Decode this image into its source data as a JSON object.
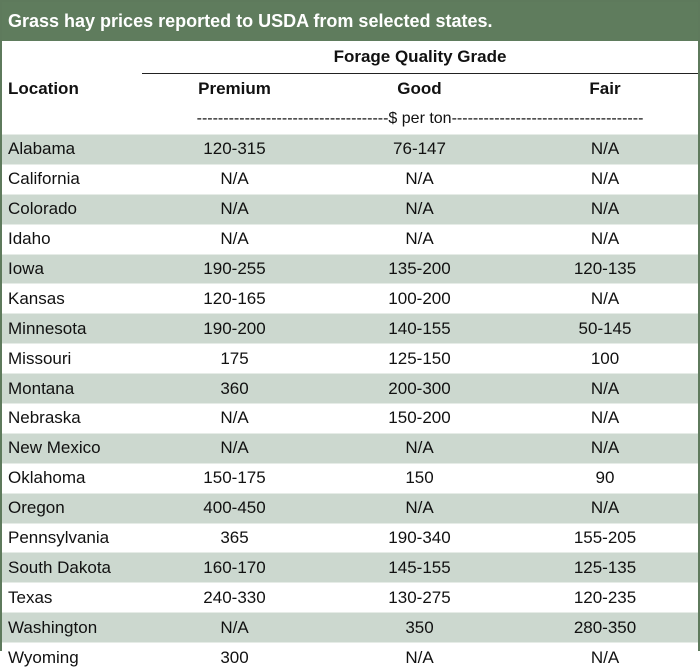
{
  "title": "Grass hay prices reported to USDA from selected states.",
  "header": {
    "group_label": "Forage Quality Grade",
    "location_label": "Location",
    "grades": [
      "Premium",
      "Good",
      "Fair"
    ],
    "unit_label": "------------------------------------$ per ton------------------------------------"
  },
  "rows": [
    {
      "location": "Alabama",
      "premium": "120-315",
      "good": "76-147",
      "fair": "N/A"
    },
    {
      "location": "California",
      "premium": "N/A",
      "good": "N/A",
      "fair": "N/A"
    },
    {
      "location": "Colorado",
      "premium": "N/A",
      "good": "N/A",
      "fair": "N/A"
    },
    {
      "location": "Idaho",
      "premium": "N/A",
      "good": "N/A",
      "fair": "N/A"
    },
    {
      "location": "Iowa",
      "premium": "190-255",
      "good": "135-200",
      "fair": "120-135"
    },
    {
      "location": "Kansas",
      "premium": "120-165",
      "good": "100-200",
      "fair": "N/A"
    },
    {
      "location": "Minnesota",
      "premium": "190-200",
      "good": "140-155",
      "fair": "50-145"
    },
    {
      "location": "Missouri",
      "premium": "175",
      "good": "125-150",
      "fair": "100"
    },
    {
      "location": "Montana",
      "premium": "360",
      "good": "200-300",
      "fair": "N/A"
    },
    {
      "location": "Nebraska",
      "premium": "N/A",
      "good": "150-200",
      "fair": "N/A"
    },
    {
      "location": "New Mexico",
      "premium": "N/A",
      "good": "N/A",
      "fair": "N/A"
    },
    {
      "location": "Oklahoma",
      "premium": "150-175",
      "good": "150",
      "fair": "90"
    },
    {
      "location": "Oregon",
      "premium": "400-450",
      "good": "N/A",
      "fair": "N/A"
    },
    {
      "location": "Pennsylvania",
      "premium": "365",
      "good": "190-340",
      "fair": "155-205"
    },
    {
      "location": "South Dakota",
      "premium": "160-170",
      "good": "145-155",
      "fair": "125-135"
    },
    {
      "location": "Texas",
      "premium": "240-330",
      "good": "130-275",
      "fair": "120-235"
    },
    {
      "location": "Washington",
      "premium": "N/A",
      "good": "350",
      "fair": "280-350"
    },
    {
      "location": "Wyoming",
      "premium": "300",
      "good": "N/A",
      "fair": "N/A"
    }
  ]
}
